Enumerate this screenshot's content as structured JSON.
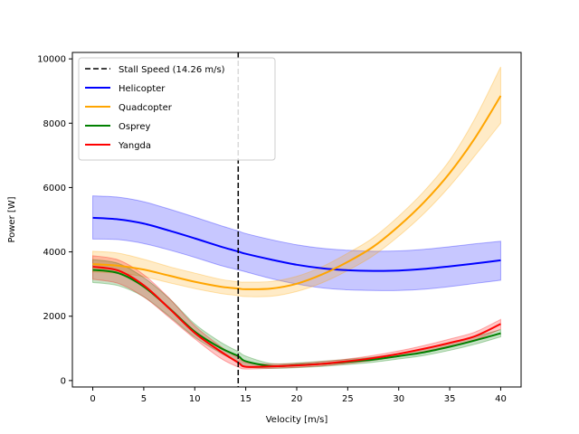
{
  "chart_data": {
    "type": "line",
    "title": "",
    "xlabel": "Velocity [m/s]",
    "ylabel": "Power [W]",
    "xlim": [
      -2,
      42
    ],
    "ylim": [
      -200,
      10200
    ],
    "xticks": [
      0,
      5,
      10,
      15,
      20,
      25,
      30,
      35,
      40
    ],
    "yticks": [
      0,
      2000,
      4000,
      6000,
      8000,
      10000
    ],
    "grid": false,
    "legend": "top-left",
    "vline": {
      "x": 14.26,
      "label": "Stall Speed (14.26 m/s)",
      "color": "#000000",
      "style": "dashed"
    },
    "x": [
      0,
      2.5,
      5,
      7.5,
      10,
      12.5,
      14.26,
      15,
      17.5,
      20,
      22.5,
      25,
      27.5,
      30,
      32.5,
      35,
      37.5,
      40
    ],
    "series": [
      {
        "name": "Helicopter",
        "color": "#0000ff",
        "values": [
          5060,
          5010,
          4880,
          4660,
          4420,
          4170,
          4010,
          3940,
          3760,
          3600,
          3490,
          3430,
          3410,
          3420,
          3470,
          3550,
          3640,
          3740
        ],
        "lower": [
          4400,
          4380,
          4260,
          4060,
          3830,
          3580,
          3440,
          3380,
          3170,
          3000,
          2880,
          2820,
          2800,
          2800,
          2840,
          2920,
          3020,
          3120
        ],
        "upper": [
          5740,
          5700,
          5560,
          5330,
          5080,
          4820,
          4650,
          4570,
          4380,
          4220,
          4110,
          4050,
          4020,
          4030,
          4080,
          4160,
          4250,
          4330
        ]
      },
      {
        "name": "Quadcopter",
        "color": "#ffa500",
        "values": [
          3620,
          3570,
          3450,
          3260,
          3070,
          2920,
          2860,
          2840,
          2860,
          3010,
          3300,
          3690,
          4160,
          4800,
          5550,
          6450,
          7550,
          8850
        ],
        "lower": [
          3380,
          3340,
          3230,
          3040,
          2860,
          2710,
          2640,
          2610,
          2620,
          2770,
          3040,
          3420,
          3880,
          4490,
          5200,
          6040,
          7000,
          8000
        ],
        "upper": [
          4020,
          3960,
          3770,
          3540,
          3340,
          3150,
          3070,
          3060,
          3080,
          3240,
          3540,
          3960,
          4440,
          5110,
          5890,
          6850,
          8160,
          9750
        ]
      },
      {
        "name": "Osprey",
        "color": "#008000",
        "values": [
          3440,
          3340,
          2920,
          2250,
          1520,
          1020,
          760,
          600,
          450,
          480,
          520,
          580,
          650,
          760,
          880,
          1050,
          1250,
          1470
        ],
        "lower": [
          3050,
          2950,
          2600,
          2000,
          1350,
          860,
          570,
          430,
          380,
          400,
          440,
          500,
          570,
          670,
          780,
          940,
          1130,
          1360
        ],
        "upper": [
          3760,
          3640,
          3200,
          2550,
          1760,
          1200,
          900,
          760,
          530,
          550,
          600,
          660,
          730,
          840,
          980,
          1160,
          1370,
          1580
        ]
      },
      {
        "name": "Yangda",
        "color": "#ff0000",
        "values": [
          3540,
          3420,
          2960,
          2240,
          1480,
          910,
          560,
          430,
          440,
          470,
          520,
          600,
          700,
          830,
          990,
          1170,
          1380,
          1760
        ],
        "lower": [
          3150,
          3020,
          2600,
          1960,
          1300,
          700,
          420,
          360,
          380,
          410,
          460,
          530,
          630,
          750,
          900,
          1070,
          1270,
          1600
        ],
        "upper": [
          3880,
          3750,
          3290,
          2560,
          1700,
          1070,
          700,
          560,
          510,
          530,
          590,
          670,
          780,
          920,
          1090,
          1290,
          1510,
          1900
        ]
      }
    ]
  }
}
